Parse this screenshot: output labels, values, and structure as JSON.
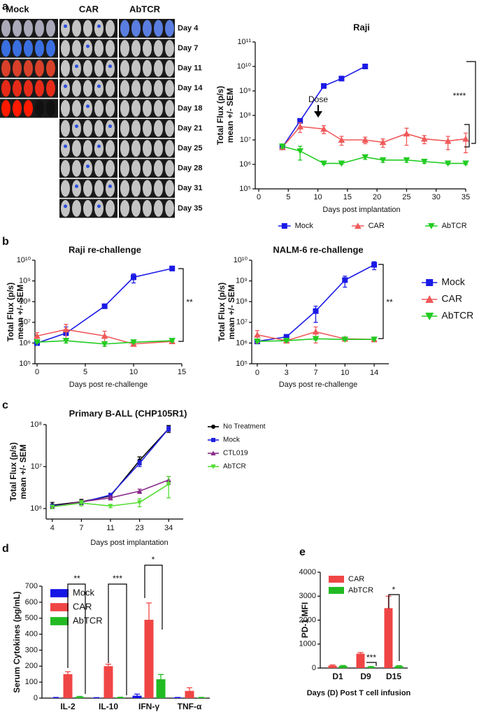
{
  "panel_labels": [
    "a",
    "b",
    "c",
    "d",
    "e"
  ],
  "image_panel": {
    "columns": [
      "Mock",
      "CAR",
      "AbTCR"
    ],
    "days": [
      "Day 4",
      "Day 7",
      "Day 11",
      "Day 14",
      "Day 18",
      "Day 21",
      "Day 25",
      "Day 28",
      "Day 31",
      "Day 35"
    ]
  },
  "chart_data": [
    {
      "type": "line",
      "title": "Raji",
      "xlabel": "Days post implantation",
      "ylabel": [
        "Total Flux (p/s)",
        "mean +/- SEM"
      ],
      "yscale": "log",
      "ylim": [
        100000.0,
        100000000000.0
      ],
      "yticks": [
        {
          "value": 100000.0,
          "label": "10⁵"
        },
        {
          "value": 1000000.0,
          "label": "10⁶"
        },
        {
          "value": 10000000.0,
          "label": "10⁷"
        },
        {
          "value": 100000000.0,
          "label": "10⁸"
        },
        {
          "value": 1000000000.0,
          "label": "10⁹"
        },
        {
          "value": 10000000000.0,
          "label": "10¹⁰"
        },
        {
          "value": 100000000000.0,
          "label": "10¹¹"
        }
      ],
      "xlim": [
        0,
        35
      ],
      "xticks": [
        0,
        5,
        10,
        15,
        20,
        25,
        30,
        35
      ],
      "legend": "bottom",
      "annotations": [
        "Dose",
        "****"
      ],
      "series": [
        {
          "name": "Mock",
          "color": "#1a1ae6",
          "marker": "square",
          "x": [
            4,
            7,
            11,
            14,
            18
          ],
          "values": [
            5000000.0,
            60000000.0,
            1600000000.0,
            3200000000.0,
            10000000000.0
          ],
          "errors": [
            1000000.0,
            10000000.0,
            300000000.0,
            400000000.0,
            1500000000.0
          ]
        },
        {
          "name": "CAR",
          "color": "#f05a5a",
          "marker": "triangle",
          "x": [
            4,
            7,
            11,
            14,
            18,
            21,
            25,
            28,
            32,
            35
          ],
          "values": [
            5000000.0,
            35000000.0,
            28000000.0,
            10000000.0,
            10000000.0,
            8000000.0,
            18000000.0,
            11000000.0,
            9000000.0,
            11000000.0
          ],
          "errors": [
            1000000.0,
            15000000.0,
            10000000.0,
            4000000.0,
            3000000.0,
            3000000.0,
            12000000.0,
            4000000.0,
            5000000.0,
            8000000.0
          ]
        },
        {
          "name": "AbTCR",
          "color": "#22cc22",
          "marker": "triangle-down",
          "x": [
            4,
            7,
            11,
            14,
            18,
            21,
            25,
            28,
            32,
            35
          ],
          "values": [
            5500000.0,
            3500000.0,
            1100000.0,
            1100000.0,
            2000000.0,
            1500000.0,
            1500000.0,
            1300000.0,
            1100000.0,
            1100000.0
          ],
          "errors": [
            1000000.0,
            2000000.0,
            100000.0,
            100000.0,
            400000.0,
            300000.0,
            300000.0,
            200000.0,
            100000.0,
            100000.0
          ]
        }
      ]
    },
    {
      "type": "line",
      "title": "Raji re-challenge",
      "xlabel": "Days post re-challenge",
      "ylabel": [
        "Total Flux (p/s)",
        "mean +/- SEM"
      ],
      "yscale": "log",
      "ylim": [
        100000.0,
        10000000000.0
      ],
      "yticks": [
        {
          "value": 100000.0,
          "label": "10⁵"
        },
        {
          "value": 1000000.0,
          "label": "10⁶"
        },
        {
          "value": 10000000.0,
          "label": "10⁷"
        },
        {
          "value": 100000000.0,
          "label": "10⁸"
        },
        {
          "value": 1000000000.0,
          "label": "10⁹"
        },
        {
          "value": 10000000000.0,
          "label": "10¹⁰"
        }
      ],
      "xlim": [
        0,
        15
      ],
      "xticks": [
        0,
        5,
        10,
        15
      ],
      "annotations": [
        "**"
      ],
      "series": [
        {
          "color": "#1a1ae6",
          "marker": "square",
          "x": [
            0,
            3,
            7,
            10,
            14
          ],
          "values": [
            1000000.0,
            3000000.0,
            60000000.0,
            1500000000.0,
            4000000000.0
          ],
          "errors": [
            200000.0,
            3000000.0,
            8000000.0,
            700000000.0,
            900000000.0
          ]
        },
        {
          "color": "#f05a5a",
          "marker": "triangle",
          "x": [
            0,
            3,
            7,
            10,
            14
          ],
          "values": [
            2200000.0,
            4500000.0,
            2200000.0,
            900000.0,
            1200000.0
          ],
          "errors": [
            1000000.0,
            3500000.0,
            1500000.0,
            200000.0,
            200000.0
          ]
        },
        {
          "color": "#22cc22",
          "marker": "triangle-down",
          "x": [
            0,
            3,
            7,
            10,
            14
          ],
          "values": [
            1100000.0,
            1300000.0,
            900000.0,
            1100000.0,
            1300000.0
          ],
          "errors": [
            100000.0,
            300000.0,
            200000.0,
            100000.0,
            100000.0
          ]
        }
      ]
    },
    {
      "type": "line",
      "title": "NALM-6 re-challenge",
      "xlabel": "Days post re-challenge",
      "ylabel": [
        "Total Flux (p/s)",
        "mean +/- SEM"
      ],
      "yscale": "log",
      "ylim": [
        100000.0,
        10000000000.0
      ],
      "yticks": [
        {
          "value": 100000.0,
          "label": "10⁵"
        },
        {
          "value": 1000000.0,
          "label": "10⁶"
        },
        {
          "value": 10000000.0,
          "label": "10⁷"
        },
        {
          "value": 100000000.0,
          "label": "10⁸"
        },
        {
          "value": 1000000000.0,
          "label": "10⁹"
        },
        {
          "value": 10000000000.0,
          "label": "10¹⁰"
        }
      ],
      "categories": [
        "0",
        "3",
        "7",
        "10",
        "14"
      ],
      "legend": "right",
      "annotations": [
        "**"
      ],
      "series": [
        {
          "name": "Mock",
          "color": "#1a1ae6",
          "marker": "square",
          "values": [
            1200000.0,
            2000000.0,
            35000000.0,
            1100000000.0,
            6000000000.0
          ],
          "errors": [
            200000.0,
            500000.0,
            25000000.0,
            600000000.0,
            2500000000.0
          ]
        },
        {
          "name": "CAR",
          "color": "#f05a5a",
          "marker": "triangle",
          "values": [
            2500000.0,
            1300000.0,
            3500000.0,
            1600000.0,
            1500000.0
          ],
          "errors": [
            1500000.0,
            300000.0,
            2500000.0,
            300000.0,
            200000.0
          ]
        },
        {
          "name": "AbTCR",
          "color": "#22cc22",
          "marker": "triangle-down",
          "values": [
            1200000.0,
            1300000.0,
            1600000.0,
            1500000.0,
            1500000.0
          ],
          "errors": [
            100000.0,
            100000.0,
            200000.0,
            100000.0,
            100000.0
          ]
        }
      ]
    },
    {
      "type": "line",
      "title": "Primary B-ALL (CHP105R1)",
      "xlabel": "Days post implantation",
      "ylabel": [
        "Total Flux (p/s)",
        "mean +/- SEM"
      ],
      "yscale": "log",
      "ylim": [
        1000000.0,
        100000000.0
      ],
      "yticks": [
        {
          "value": 1000000.0,
          "label": "10⁶"
        },
        {
          "value": 10000000.0,
          "label": "10⁷"
        },
        {
          "value": 100000000.0,
          "label": "10⁸"
        }
      ],
      "categories": [
        "4",
        "7",
        "11",
        "23",
        "34"
      ],
      "legend": "right",
      "series": [
        {
          "name": "No Treatment",
          "color": "#000000",
          "marker": "circle",
          "values": [
            1200000.0,
            1450000.0,
            2000000.0,
            14000000.0,
            80000000.0
          ],
          "errors": [
            200000.0,
            200000.0,
            300000.0,
            3000000.0,
            15000000.0
          ]
        },
        {
          "name": "Mock",
          "color": "#2020e0",
          "marker": "square",
          "values": [
            1150000.0,
            1400000.0,
            2100000.0,
            12000000.0,
            80000000.0
          ],
          "errors": [
            100000.0,
            100000.0,
            200000.0,
            2000000.0,
            10000000.0
          ]
        },
        {
          "name": "CTL019",
          "color": "#8a2a8a",
          "marker": "triangle",
          "values": [
            1100000.0,
            1450000.0,
            1800000.0,
            2600000.0,
            4800000.0
          ],
          "errors": [
            100000.0,
            100000.0,
            200000.0,
            300000.0,
            1000000.0
          ]
        },
        {
          "name": "AbTCR",
          "color": "#55dd33",
          "marker": "triangle-down",
          "values": [
            1100000.0,
            1350000.0,
            1150000.0,
            1400000.0,
            3800000.0
          ],
          "errors": [
            100000.0,
            200000.0,
            100000.0,
            300000.0,
            2000000.0
          ]
        }
      ]
    },
    {
      "type": "bar",
      "ylabel": [
        "Serum Cytokines (pg/mL)"
      ],
      "ylim": [
        0,
        700
      ],
      "yticks": [
        0,
        100,
        200,
        300,
        400,
        500,
        600,
        700
      ],
      "categories": [
        "IL-2",
        "IL-10",
        "IFN-γ",
        "TNF-α"
      ],
      "legend": "top-left",
      "annotations": [
        "**",
        "***",
        "*"
      ],
      "series": [
        {
          "name": "Mock",
          "color": "#1515e6",
          "values": [
            2,
            2,
            15,
            3
          ],
          "errors": [
            2,
            1,
            10,
            1
          ]
        },
        {
          "name": "CAR",
          "color": "#f04545",
          "values": [
            150,
            200,
            490,
            45
          ],
          "errors": [
            15,
            12,
            105,
            20
          ]
        },
        {
          "name": "AbTCR",
          "color": "#22bb22",
          "values": [
            8,
            4,
            118,
            3
          ],
          "errors": [
            3,
            2,
            30,
            2
          ]
        }
      ]
    },
    {
      "type": "bar",
      "xlabel": "Days (D) Post T cell infusion",
      "ylabel": [
        "PD-1 MFI"
      ],
      "ylim": [
        0,
        4000
      ],
      "yticks": [
        0,
        1000,
        2000,
        3000,
        4000
      ],
      "categories": [
        "D1",
        "D9",
        "D15"
      ],
      "legend": "top-left",
      "annotations": [
        "***",
        "*"
      ],
      "series": [
        {
          "name": "CAR",
          "color": "#f04545",
          "values": [
            100,
            600,
            2500
          ],
          "errors": [
            30,
            50,
            500
          ]
        },
        {
          "name": "AbTCR",
          "color": "#22bb22",
          "values": [
            90,
            50,
            80
          ],
          "errors": [
            20,
            15,
            20
          ]
        }
      ]
    }
  ]
}
